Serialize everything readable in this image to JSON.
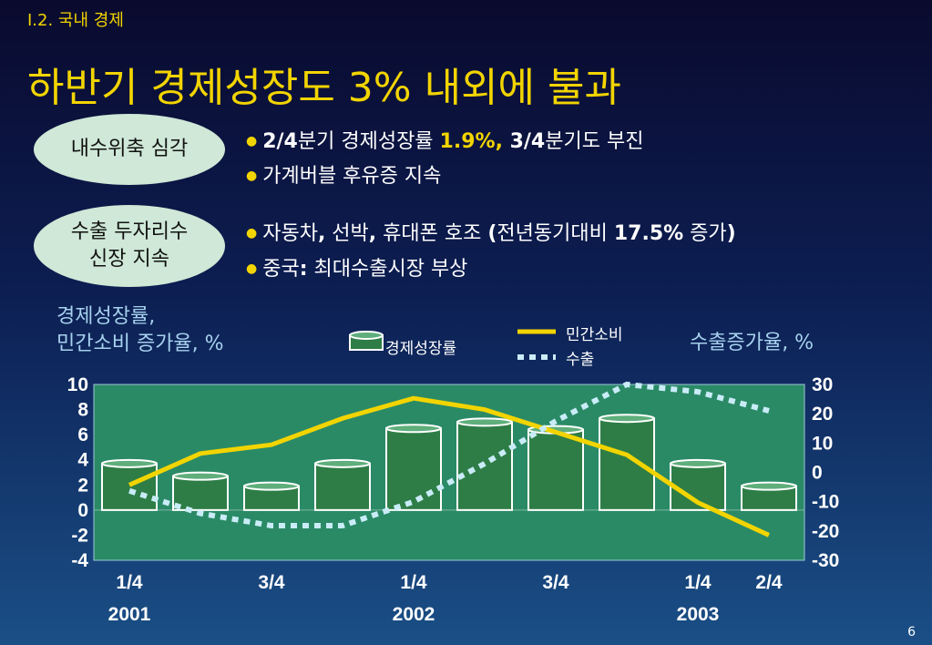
{
  "section": "I.2. 국내 경제",
  "title": "하반기 경제성장도 3% 내외에 불과",
  "box1": {
    "label": "내수위축 심각",
    "bullets": [
      {
        "p1": "2/4",
        "p2": "분기 경제성장률 ",
        "p3": "1.9%,",
        "p4": " 3/4",
        "p5": "분기도 부진"
      },
      {
        "text": "가계버블 후유증 지속"
      }
    ]
  },
  "box2": {
    "label_line1": "수출 두자리수",
    "label_line2": "신장 지속",
    "bullets": [
      {
        "p1": "자동차",
        "p2": ",",
        "p3": " 선박",
        "p4": ",",
        "p5": " 휴대폰 호조 ",
        "p6": "(",
        "p7": "전년동기대비 ",
        "p8": "17.5%",
        "p9": " 증가",
        "p10": ")"
      },
      {
        "p1": "중국",
        "p2": ":",
        "p3": " 최대수출시장 부상"
      }
    ]
  },
  "left_axis_title_1": "경제성장률,",
  "left_axis_title_2": "민간소비 증가율, %",
  "right_axis_title": "수출증가율, %",
  "legend": {
    "bar": "경제성장률",
    "line1": "민간소비",
    "line2": "수출"
  },
  "colors": {
    "yellow": "#f2d400",
    "plot_bg": "#2a8a66",
    "bar": "#2e7d46",
    "export": "#c9ecf7",
    "axis_title": "#a7d1ee"
  },
  "chart_data": {
    "type": "bar",
    "x": [
      "2001-1/4",
      "2001-2/4",
      "2001-3/4",
      "2001-4/4",
      "2002-1/4",
      "2002-2/4",
      "2002-3/4",
      "2002-4/4",
      "2003-1/4",
      "2003-2/4"
    ],
    "x_tick_labels": [
      {
        "index": 0,
        "quarter": "1/4",
        "year": "2001"
      },
      {
        "index": 2,
        "quarter": "3/4",
        "year": ""
      },
      {
        "index": 4,
        "quarter": "1/4",
        "year": "2002"
      },
      {
        "index": 6,
        "quarter": "3/4",
        "year": ""
      },
      {
        "index": 8,
        "quarter": "1/4",
        "year": "2003"
      },
      {
        "index": 9,
        "quarter": "2/4",
        "year": ""
      }
    ],
    "series": [
      {
        "name": "경제성장률",
        "type": "bar",
        "axis": "left",
        "values": [
          3.7,
          2.7,
          1.9,
          3.7,
          6.5,
          7.0,
          6.4,
          7.3,
          3.7,
          1.9
        ]
      },
      {
        "name": "민간소비",
        "type": "line",
        "axis": "left",
        "values": [
          2.0,
          4.5,
          5.2,
          7.3,
          8.9,
          8.0,
          6.2,
          4.4,
          0.6,
          -2.0
        ]
      },
      {
        "name": "수출",
        "type": "line",
        "axis": "right",
        "values": [
          -6.3,
          -14.0,
          -18.2,
          -18.2,
          -10.0,
          3.0,
          17.5,
          30.0,
          27.5,
          21.0
        ]
      }
    ],
    "ylim_left": [
      -4,
      10
    ],
    "yticks_left": [
      10,
      8,
      6,
      4,
      2,
      0,
      -2,
      -4
    ],
    "ylim_right": [
      -30,
      30
    ],
    "yticks_right": [
      30,
      20,
      10,
      0,
      -10,
      -20,
      -30
    ],
    "grid": false,
    "legend_position": "top"
  },
  "page_number": "6"
}
